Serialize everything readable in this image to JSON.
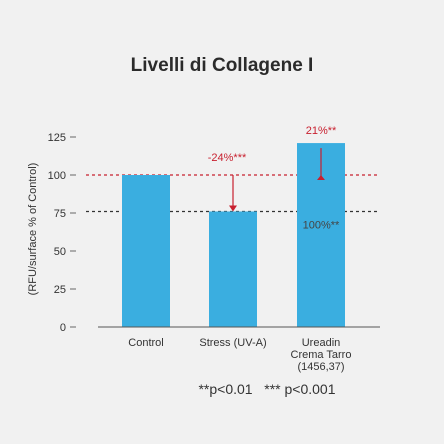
{
  "chart_data": {
    "type": "bar",
    "title": "Livelli di Collagene I",
    "ylabel": "(RFU/surface % of Control)",
    "xlabel": "",
    "ylim": [
      0,
      125
    ],
    "yticks": [
      0,
      25,
      50,
      75,
      100,
      125
    ],
    "grid": false,
    "categories": [
      "Control",
      "Stress (UV-A)",
      "Ureadin Crema Tarro (1456,37)"
    ],
    "category_lines": [
      [
        "Control"
      ],
      [
        "Stress (UV-A)"
      ],
      [
        "Ureadin",
        "Crema Tarro",
        "(1456,37)"
      ]
    ],
    "values": [
      100,
      76,
      121
    ],
    "bar_color": "#3aaee0",
    "reference_lines": [
      {
        "value": 100,
        "color": "#c8202f",
        "style": "dashed"
      },
      {
        "value": 76,
        "color": "#333333",
        "style": "dashed"
      }
    ],
    "annotations": {
      "stress_change": "-24%***",
      "ureadin_change": "21%**",
      "ureadin_reference": "100%**"
    },
    "annotation_color": "#c8202f",
    "footnote": "**p<0.01   *** p<0.001"
  }
}
